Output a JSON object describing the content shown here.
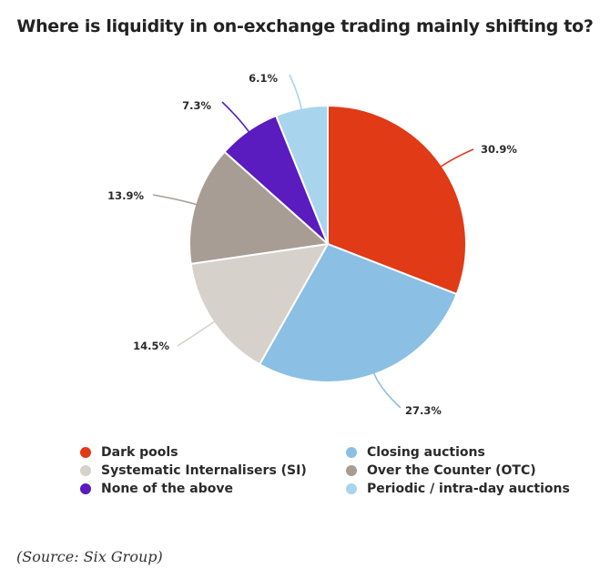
{
  "chart_data": {
    "type": "pie",
    "title": "Where is liquidity in on-exchange trading mainly shifting to?",
    "slices": [
      {
        "name": "Dark pools",
        "value": 30.9,
        "label": "30.9%",
        "color": "#E03A17"
      },
      {
        "name": "Closing auctions",
        "value": 27.3,
        "label": "27.3%",
        "color": "#8BBFE3"
      },
      {
        "name": "Systematic Internalisers (SI)",
        "value": 14.5,
        "label": "14.5%",
        "color": "#D6D1CB"
      },
      {
        "name": "Over the Counter (OTC)",
        "value": 13.9,
        "label": "13.9%",
        "color": "#A89D94"
      },
      {
        "name": "None of the above",
        "value": 7.3,
        "label": "7.3%",
        "color": "#5A1BBF"
      },
      {
        "name": "Periodic / intra-day auctions",
        "value": 6.1,
        "label": "6.1%",
        "color": "#A8D4EE"
      }
    ],
    "legend_order": [
      "Dark pools",
      "Closing auctions",
      "Systematic Internalisers (SI)",
      "Over the Counter (OTC)",
      "None of the above",
      "Periodic / intra-day auctions"
    ],
    "legend_placement": "bottom"
  },
  "source_note": "(Source: Six Group)"
}
